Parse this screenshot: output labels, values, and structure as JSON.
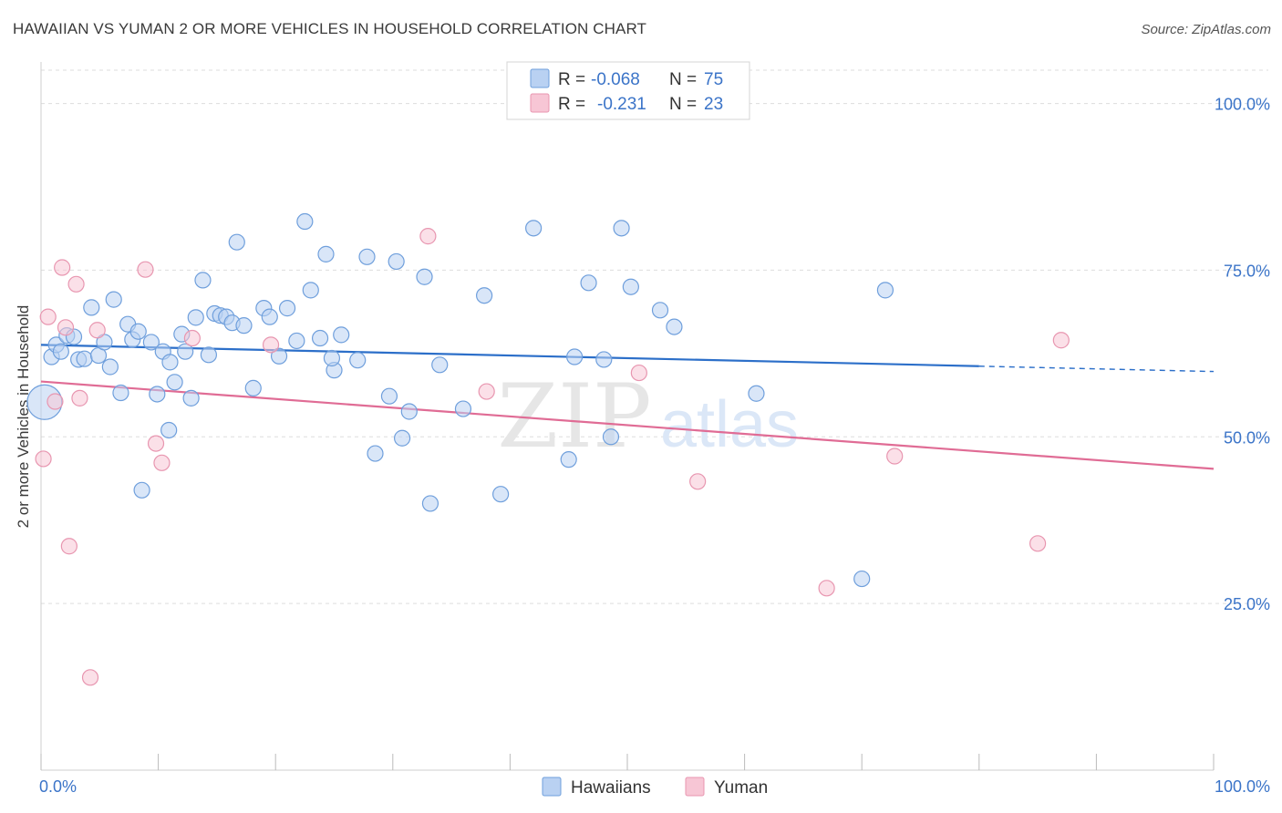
{
  "title": "HAWAIIAN VS YUMAN 2 OR MORE VEHICLES IN HOUSEHOLD CORRELATION CHART",
  "source": "Source: ZipAtlas.com",
  "watermark": {
    "zip": "ZIP",
    "atlas": "atlas"
  },
  "legend_box": {
    "rows": [
      {
        "r_label": "R =",
        "r_value": "-0.068",
        "n_label": "N =",
        "n_value": "75"
      },
      {
        "r_label": "R =",
        "r_value": "-0.231",
        "n_label": "N =",
        "n_value": "23"
      }
    ]
  },
  "colors": {
    "blue": "#6f9fdc",
    "blue_fill": "#b9d1f2",
    "blue_line": "#2c6fc9",
    "pink": "#e896b0",
    "pink_fill": "#f7c6d5",
    "pink_line": "#e06c95",
    "axis_text": "#3b74c8",
    "grid": "#dddddd"
  },
  "chart_data": {
    "type": "scatter",
    "title": "HAWAIIAN VS YUMAN 2 OR MORE VEHICLES IN HOUSEHOLD CORRELATION CHART",
    "xlabel": "",
    "ylabel": "2 or more Vehicles in Household",
    "xlim": [
      0,
      100
    ],
    "ylim": [
      0,
      105
    ],
    "x_tick_labels": [
      "0.0%",
      "100.0%"
    ],
    "y_ticks": [
      25,
      50,
      75,
      100
    ],
    "y_tick_labels": [
      "25.0%",
      "50.0%",
      "75.0%",
      "100.0%"
    ],
    "grid": true,
    "legend": "bottom-center",
    "series": [
      {
        "name": "Hawaiians",
        "r": -0.068,
        "n": 75,
        "trend": {
          "x0": 0,
          "y0": 63.8,
          "x1": 80,
          "y1": 60.6,
          "dashed_to": 100,
          "y_end": 59.8
        },
        "points": [
          [
            0.3,
            55.2
          ],
          [
            0.9,
            62.0
          ],
          [
            1.3,
            63.8
          ],
          [
            1.7,
            62.8
          ],
          [
            2.2,
            65.2
          ],
          [
            2.8,
            65.0
          ],
          [
            3.2,
            61.6
          ],
          [
            3.7,
            61.7
          ],
          [
            4.3,
            69.4
          ],
          [
            4.9,
            62.2
          ],
          [
            5.4,
            64.2
          ],
          [
            5.9,
            60.5
          ],
          [
            6.2,
            70.6
          ],
          [
            6.8,
            56.6
          ],
          [
            7.4,
            66.9
          ],
          [
            7.8,
            64.6
          ],
          [
            8.3,
            65.8
          ],
          [
            8.6,
            42.0
          ],
          [
            9.4,
            64.2
          ],
          [
            9.9,
            56.4
          ],
          [
            10.4,
            62.8
          ],
          [
            10.9,
            51.0
          ],
          [
            11.4,
            58.2
          ],
          [
            12.0,
            65.4
          ],
          [
            12.3,
            62.8
          ],
          [
            12.8,
            55.8
          ],
          [
            13.2,
            67.9
          ],
          [
            13.8,
            73.5
          ],
          [
            14.3,
            62.3
          ],
          [
            14.8,
            68.5
          ],
          [
            15.3,
            68.2
          ],
          [
            15.8,
            68.0
          ],
          [
            16.3,
            67.1
          ],
          [
            16.7,
            79.2
          ],
          [
            17.3,
            66.7
          ],
          [
            18.1,
            57.3
          ],
          [
            19.0,
            69.3
          ],
          [
            19.5,
            68.0
          ],
          [
            20.3,
            62.1
          ],
          [
            21.0,
            69.3
          ],
          [
            21.8,
            64.4
          ],
          [
            22.5,
            82.3
          ],
          [
            23.0,
            72.0
          ],
          [
            23.8,
            64.8
          ],
          [
            24.3,
            77.4
          ],
          [
            25.0,
            60.0
          ],
          [
            25.6,
            65.3
          ],
          [
            27.0,
            61.5
          ],
          [
            27.8,
            77.0
          ],
          [
            28.5,
            47.5
          ],
          [
            29.7,
            56.1
          ],
          [
            30.3,
            76.3
          ],
          [
            30.8,
            49.8
          ],
          [
            31.4,
            53.8
          ],
          [
            32.7,
            74.0
          ],
          [
            33.2,
            40.0
          ],
          [
            34.0,
            60.8
          ],
          [
            36.0,
            54.2
          ],
          [
            37.8,
            71.2
          ],
          [
            39.2,
            41.4
          ],
          [
            42.0,
            81.3
          ],
          [
            45.0,
            46.6
          ],
          [
            45.5,
            62.0
          ],
          [
            46.7,
            73.1
          ],
          [
            48.0,
            61.6
          ],
          [
            48.6,
            50.0
          ],
          [
            49.5,
            81.3
          ],
          [
            50.3,
            72.5
          ],
          [
            52.8,
            69.0
          ],
          [
            54.0,
            66.5
          ],
          [
            61.0,
            56.5
          ],
          [
            70.0,
            28.7
          ],
          [
            72.0,
            72.0
          ],
          [
            11.0,
            61.2
          ],
          [
            24.8,
            61.8
          ]
        ]
      },
      {
        "name": "Yuman",
        "r": -0.231,
        "n": 23,
        "trend": {
          "x0": 0,
          "y0": 58.3,
          "x1": 100,
          "y1": 45.2
        },
        "points": [
          [
            0.2,
            46.7
          ],
          [
            0.6,
            68.0
          ],
          [
            1.2,
            55.3
          ],
          [
            1.8,
            75.4
          ],
          [
            2.1,
            66.4
          ],
          [
            2.4,
            33.6
          ],
          [
            3.0,
            72.9
          ],
          [
            3.3,
            55.8
          ],
          [
            4.2,
            13.9
          ],
          [
            4.8,
            66.0
          ],
          [
            8.9,
            75.1
          ],
          [
            9.8,
            49.0
          ],
          [
            10.3,
            46.1
          ],
          [
            12.9,
            64.8
          ],
          [
            19.6,
            63.8
          ],
          [
            33.0,
            80.1
          ],
          [
            38.0,
            56.8
          ],
          [
            51.0,
            59.6
          ],
          [
            56.0,
            43.3
          ],
          [
            67.0,
            27.3
          ],
          [
            72.8,
            47.1
          ],
          [
            85.0,
            34.0
          ],
          [
            87.0,
            64.5
          ]
        ]
      }
    ]
  }
}
